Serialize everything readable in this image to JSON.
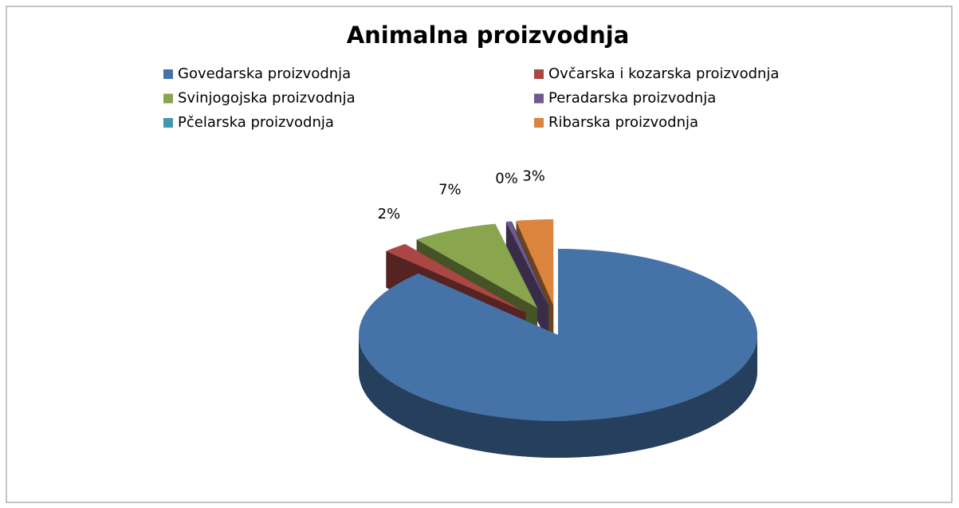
{
  "chart_data": {
    "type": "pie3d",
    "title": "Animalna proizvodnja",
    "categories": [
      "Govedarska proizvodnja",
      "Ovčarska i kozarska proizvodnja",
      "Svinjogojska proizvodnja",
      "Peradarska proizvodnja",
      "Pčelarska proizvodnja",
      "Ribarska proizvodnja"
    ],
    "values": [
      88,
      2,
      7,
      0.4,
      0,
      3
    ],
    "value_labels": [
      "88%",
      "2%",
      "7%",
      "0%",
      null,
      "3%"
    ],
    "colors": [
      "#4572a7",
      "#aa4643",
      "#89a54e",
      "#71588f",
      "#4198af",
      "#db843d"
    ],
    "legend": "top"
  }
}
